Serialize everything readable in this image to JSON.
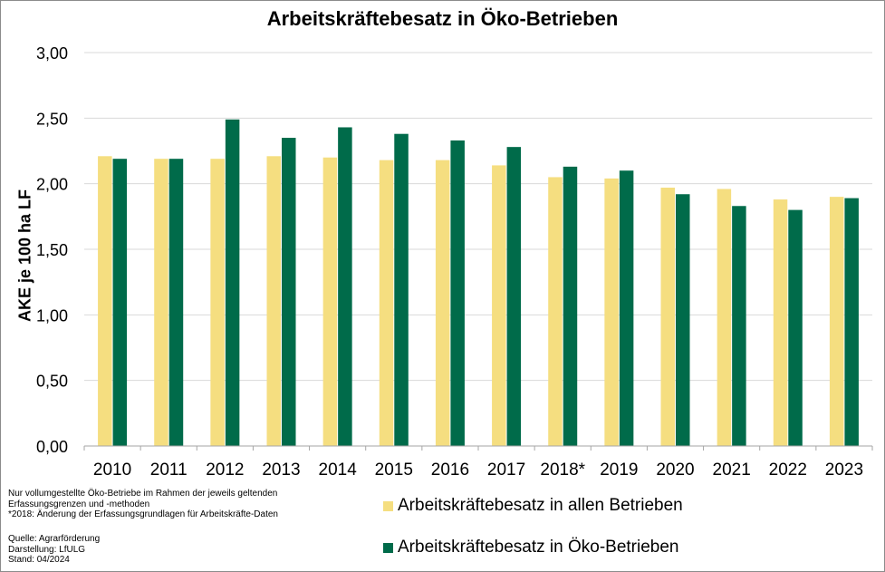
{
  "chart_data": {
    "type": "bar",
    "title": "Arbeitskräftebesatz in Öko-Betrieben",
    "xlabel": "",
    "ylabel": "AKE je 100 ha LF",
    "ylim": [
      0,
      3
    ],
    "yticks": [
      "0,00",
      "0,50",
      "1,00",
      "1,50",
      "2,00",
      "2,50",
      "3,00"
    ],
    "grid": true,
    "legend_position": "bottom",
    "categories": [
      "2010",
      "2011",
      "2012",
      "2013",
      "2014",
      "2015",
      "2016",
      "2017",
      "2018*",
      "2019",
      "2020",
      "2021",
      "2022",
      "2023"
    ],
    "series": [
      {
        "name": "Arbeitskräftebesatz in allen Betrieben",
        "color": "#f5de80",
        "values": [
          2.21,
          2.19,
          2.19,
          2.21,
          2.2,
          2.18,
          2.18,
          2.14,
          2.05,
          2.04,
          1.97,
          1.96,
          1.88,
          1.9
        ]
      },
      {
        "name": "Arbeitskräftebesatz in Öko-Betrieben",
        "color": "#006b4a",
        "values": [
          2.19,
          2.19,
          2.49,
          2.35,
          2.43,
          2.38,
          2.33,
          2.28,
          2.13,
          2.1,
          1.92,
          1.83,
          1.8,
          1.89
        ]
      }
    ]
  },
  "footnotes": [
    "Nur vollumgestellte Öko-Betriebe im Rahmen der jeweils geltenden",
    "Erfassungsgrenzen und -methoden",
    "*2018: Änderung der Erfassungsgrundlagen für Arbeitskräfte-Daten"
  ],
  "source_lines": [
    "Quelle:  Agrarförderung",
    "Darstellung: LfULG",
    "Stand: 04/2024"
  ]
}
